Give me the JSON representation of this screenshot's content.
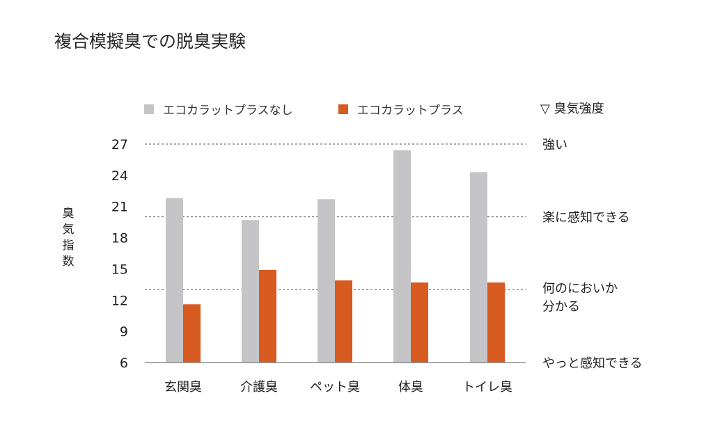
{
  "chart_data": {
    "type": "bar",
    "title": "複合模擬臭での脱臭実験",
    "ylabel": "臭気指数",
    "ylabel_chars": [
      "臭",
      "気",
      "指",
      "数"
    ],
    "ylim": [
      6,
      27
    ],
    "yticks": [
      6,
      9,
      12,
      15,
      18,
      21,
      24,
      27
    ],
    "categories": [
      "玄関臭",
      "介護臭",
      "ペット臭",
      "体臭",
      "トイレ臭"
    ],
    "series": [
      {
        "name": "エコカラットプラスなし",
        "color": "#c5c5c7",
        "values": [
          21.8,
          19.7,
          21.7,
          26.4,
          24.3
        ]
      },
      {
        "name": "エコカラットプラス",
        "color": "#d75a21",
        "values": [
          11.6,
          14.9,
          13.9,
          13.7,
          13.7
        ]
      }
    ],
    "intensity_scale": {
      "header": "▽ 臭気強度",
      "levels": [
        {
          "value": 27,
          "lines": [
            "強い"
          ],
          "dashed": true
        },
        {
          "value": 20,
          "lines": [
            "楽に感知できる"
          ],
          "dashed": true
        },
        {
          "value": 13,
          "lines": [
            "何のにおいか",
            "分かる"
          ],
          "dashed": true
        },
        {
          "value": 6,
          "lines": [
            "やっと感知できる"
          ],
          "dashed": false
        }
      ]
    },
    "grid": false,
    "legend_position": "top"
  }
}
